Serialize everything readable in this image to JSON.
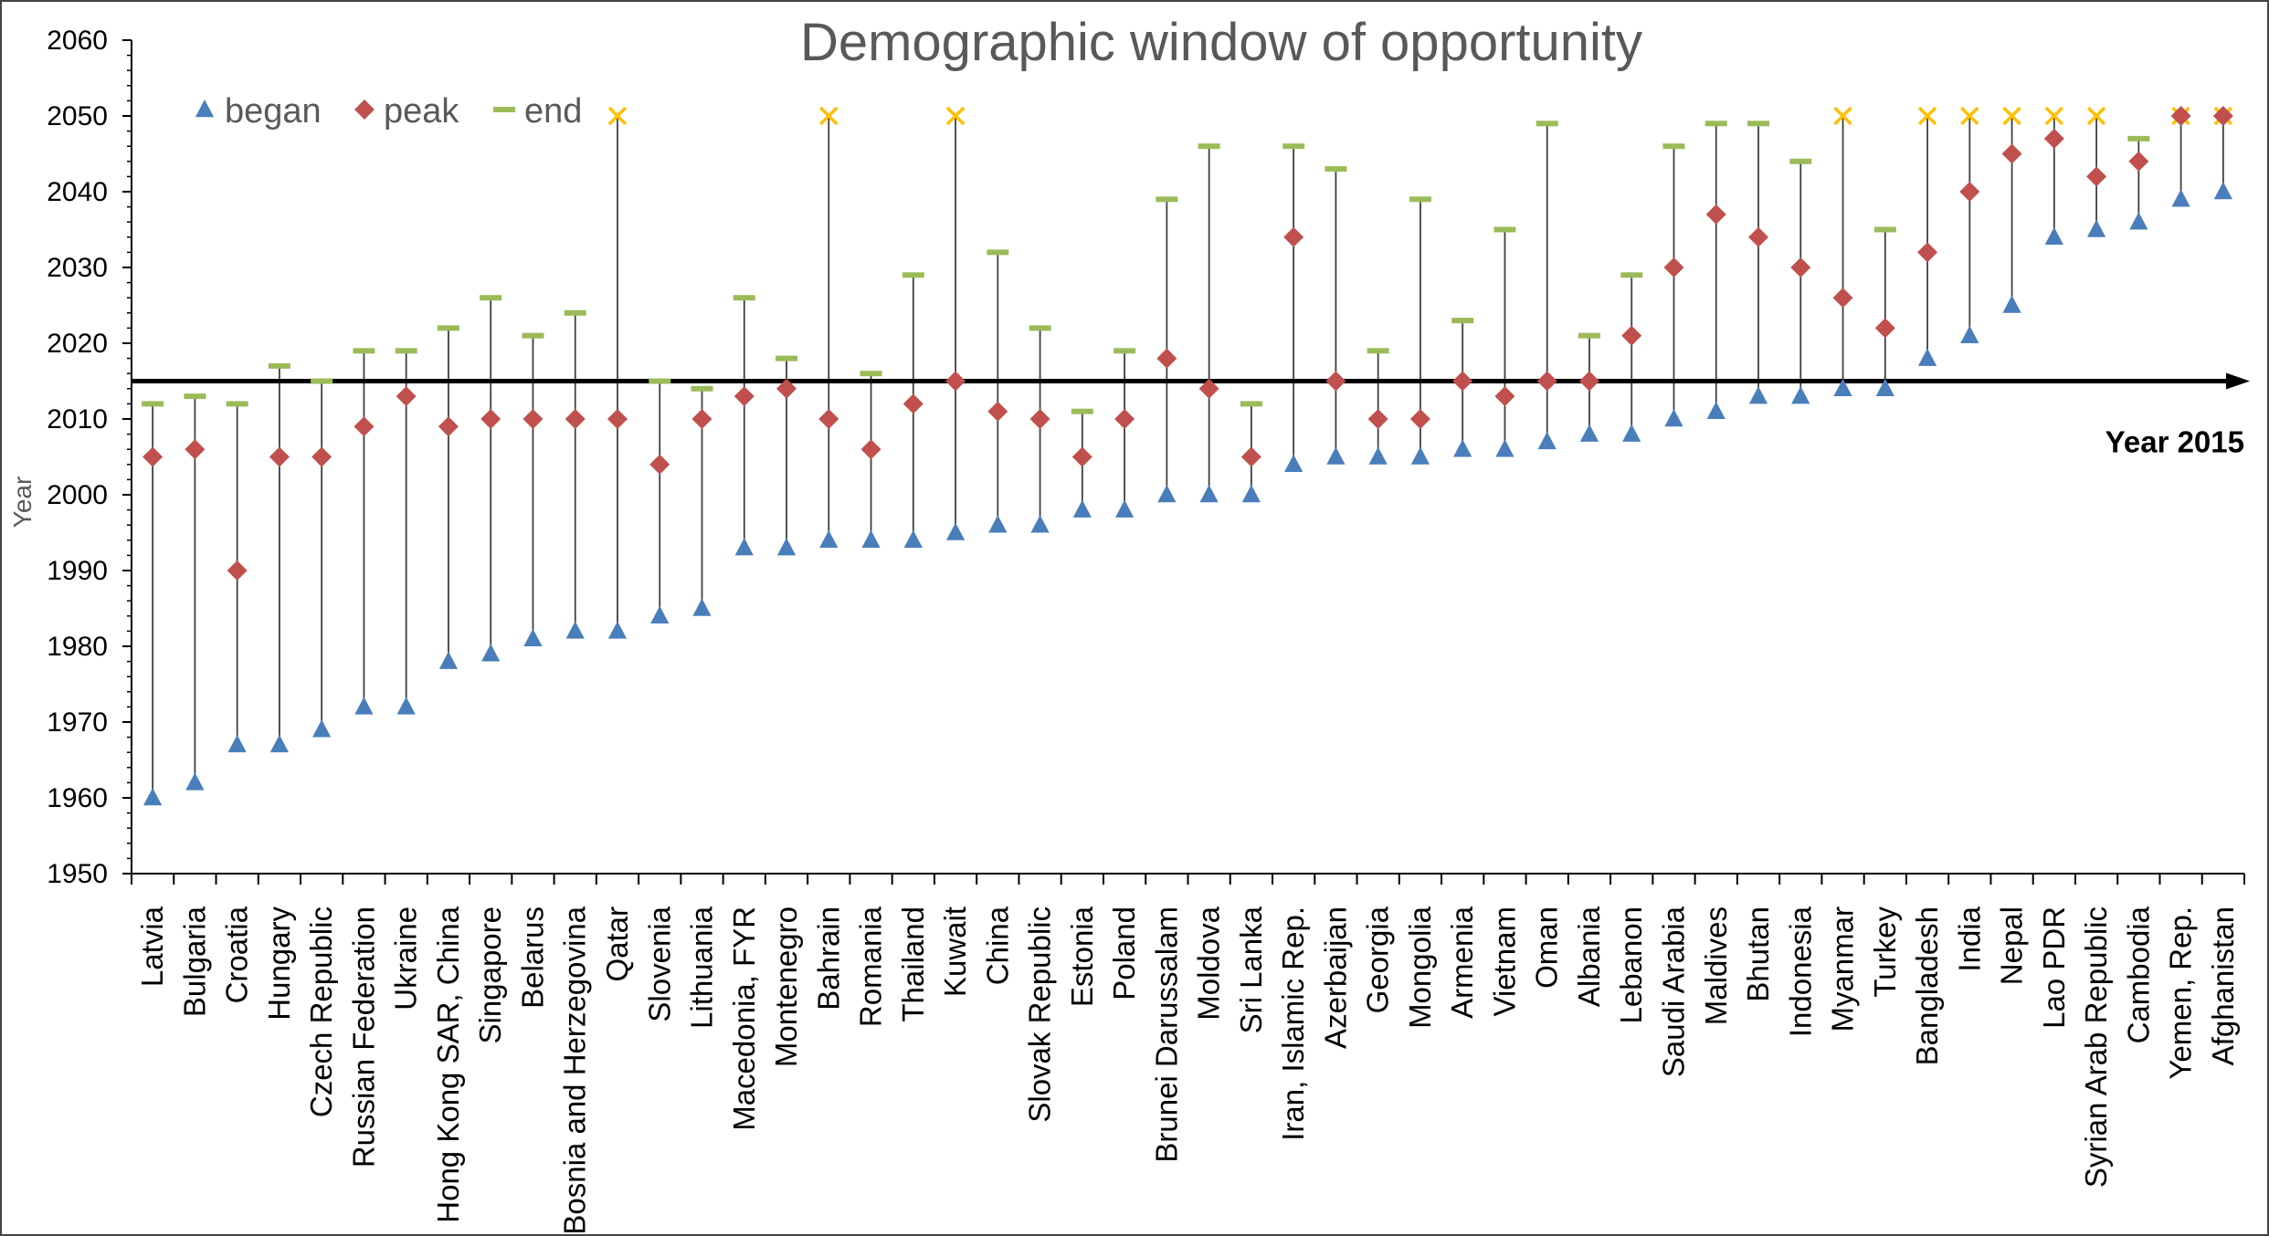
{
  "chart_data": {
    "type": "scatter",
    "title": "Demographic window of opportunity",
    "ylabel": "Year",
    "xlabel": "",
    "ylim": [
      1950,
      2060
    ],
    "ytick_step": 10,
    "grid": false,
    "legend_position": "top-left",
    "reference_line": {
      "y": 2015,
      "label": "Year 2015"
    },
    "series_names": {
      "began": "began",
      "peak": "peak",
      "end": "end"
    },
    "colors": {
      "began": "#4a7ebb",
      "peak": "#c0504d",
      "end": "#9bbb59",
      "beyond": "#ffc000",
      "line": "#000000",
      "stem": "#3f3f3f"
    },
    "categories": [
      "Latvia",
      "Bulgaria",
      "Croatia",
      "Hungary",
      "Czech Republic",
      "Russian Federation",
      "Ukraine",
      "Hong Kong SAR, China",
      "Singapore",
      "Belarus",
      "Bosnia and Herzegovina",
      "Qatar",
      "Slovenia",
      "Lithuania",
      "Macedonia, FYR",
      "Montenegro",
      "Bahrain",
      "Romania",
      "Thailand",
      "Kuwait",
      "China",
      "Slovak Republic",
      "Estonia",
      "Poland",
      "Brunei Darussalam",
      "Moldova",
      "Sri Lanka",
      "Iran, Islamic Rep.",
      "Azerbaijan",
      "Georgia",
      "Mongolia",
      "Armenia",
      "Vietnam",
      "Oman",
      "Albania",
      "Lebanon",
      "Saudi Arabia",
      "Maldives",
      "Bhutan",
      "Indonesia",
      "Myanmar",
      "Turkey",
      "Bangladesh",
      "India",
      "Nepal",
      "Lao PDR",
      "Syrian Arab Republic",
      "Cambodia",
      "Yemen, Rep.",
      "Afghanistan"
    ],
    "began": [
      1960,
      1962,
      1967,
      1967,
      1969,
      1972,
      1972,
      1978,
      1979,
      1981,
      1982,
      1982,
      1984,
      1985,
      1993,
      1993,
      1994,
      1994,
      1994,
      1995,
      1996,
      1996,
      1998,
      1998,
      2000,
      2000,
      2000,
      2004,
      2005,
      2005,
      2005,
      2006,
      2006,
      2007,
      2008,
      2008,
      2010,
      2011,
      2013,
      2013,
      2014,
      2014,
      2018,
      2021,
      2025,
      2034,
      2035,
      2036,
      2039,
      2040
    ],
    "peak": [
      2005,
      2006,
      1990,
      2005,
      2005,
      2009,
      2013,
      2009,
      2010,
      2010,
      2010,
      2010,
      2004,
      2010,
      2013,
      2014,
      2010,
      2006,
      2012,
      2015,
      2011,
      2010,
      2005,
      2010,
      2018,
      2014,
      2005,
      2034,
      2015,
      2010,
      2010,
      2015,
      2013,
      2015,
      2015,
      2021,
      2030,
      2037,
      2034,
      2030,
      2026,
      2022,
      2032,
      2040,
      2045,
      2047,
      2042,
      2044,
      2050,
      2050
    ],
    "end": [
      2012,
      2013,
      2012,
      2017,
      2015,
      2019,
      2019,
      2022,
      2026,
      2021,
      2024,
      2050,
      2015,
      2014,
      2026,
      2018,
      2050,
      2016,
      2029,
      2050,
      2032,
      2022,
      2011,
      2019,
      2039,
      2046,
      2012,
      2046,
      2043,
      2019,
      2039,
      2023,
      2035,
      2049,
      2021,
      2029,
      2046,
      2049,
      2049,
      2044,
      2050,
      2035,
      2050,
      2050,
      2050,
      2050,
      2050,
      2047,
      2050,
      2050
    ],
    "end_beyond_2050": [
      false,
      false,
      false,
      false,
      false,
      false,
      false,
      false,
      false,
      false,
      false,
      true,
      false,
      false,
      false,
      false,
      true,
      false,
      false,
      true,
      false,
      false,
      false,
      false,
      false,
      false,
      false,
      false,
      false,
      false,
      false,
      false,
      false,
      false,
      false,
      false,
      false,
      false,
      false,
      false,
      true,
      false,
      true,
      true,
      true,
      true,
      true,
      false,
      true,
      true
    ]
  }
}
